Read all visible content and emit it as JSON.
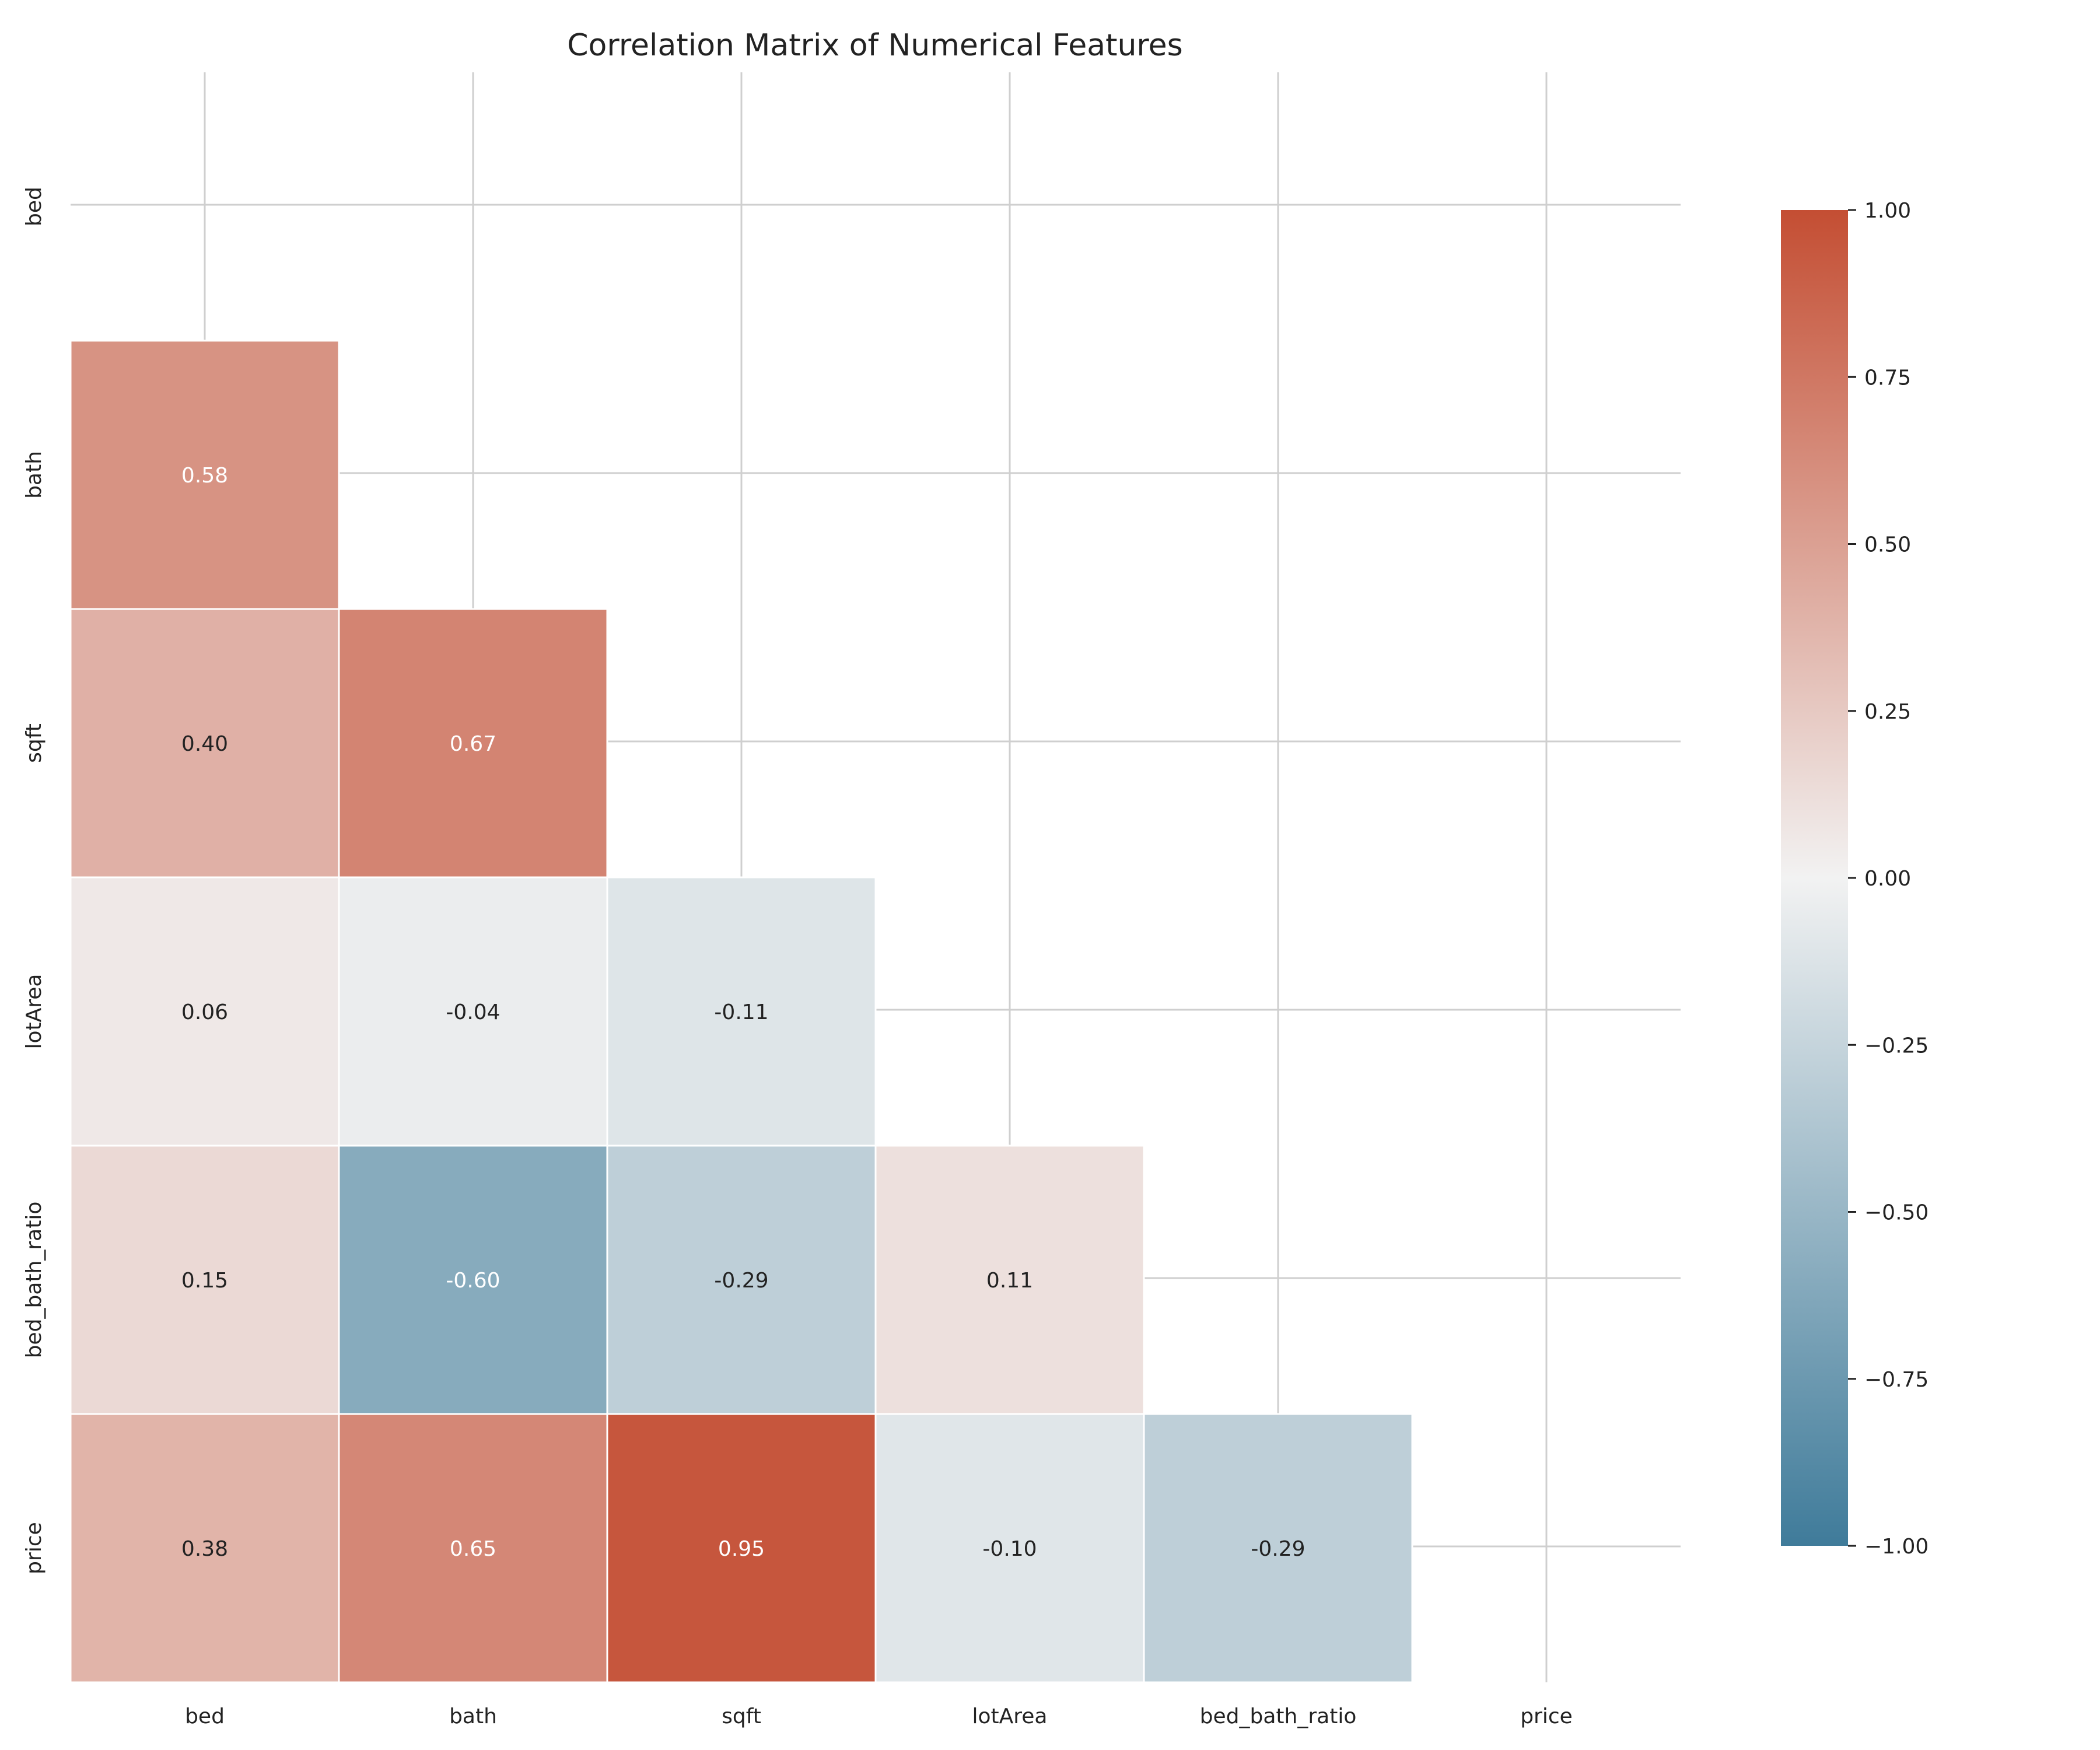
{
  "chart_data": {
    "type": "heatmap",
    "title": "Correlation Matrix of Numerical Features",
    "variables": [
      "bed",
      "bath",
      "sqft",
      "lotArea",
      "bed_bath_ratio",
      "price"
    ],
    "mask": "upper-triangle-including-diagonal",
    "matrix": [
      [
        null,
        null,
        null,
        null,
        null,
        null
      ],
      [
        0.58,
        null,
        null,
        null,
        null,
        null
      ],
      [
        0.4,
        0.67,
        null,
        null,
        null,
        null
      ],
      [
        0.06,
        -0.04,
        -0.11,
        null,
        null,
        null
      ],
      [
        0.15,
        -0.6,
        -0.29,
        0.11,
        null,
        null
      ],
      [
        0.38,
        0.65,
        0.95,
        -0.1,
        -0.29,
        null
      ]
    ],
    "labels": [
      [
        "",
        "",
        "",
        "",
        "",
        ""
      ],
      [
        "0.58",
        "",
        "",
        "",
        "",
        ""
      ],
      [
        "0.40",
        "0.67",
        "",
        "",
        "",
        ""
      ],
      [
        "0.06",
        "-0.04",
        "-0.11",
        "",
        "",
        ""
      ],
      [
        "0.15",
        "-0.60",
        "-0.29",
        "0.11",
        "",
        ""
      ],
      [
        "0.38",
        "0.65",
        "0.95",
        "-0.10",
        "-0.29",
        ""
      ]
    ],
    "colorbar": {
      "range": [
        -1.0,
        1.0
      ],
      "ticks": [
        1.0,
        0.75,
        0.5,
        0.25,
        0.0,
        -0.25,
        -0.5,
        -0.75,
        -1.0
      ],
      "tick_labels": [
        "1.00",
        "0.75",
        "0.50",
        "0.25",
        "0.00",
        "−0.25",
        "−0.50",
        "−0.75",
        "−1.00"
      ],
      "colors": {
        "negative": "#3f7b9a",
        "zero": "#f2f2f2",
        "positive": "#c44e33"
      }
    },
    "grid": true
  }
}
